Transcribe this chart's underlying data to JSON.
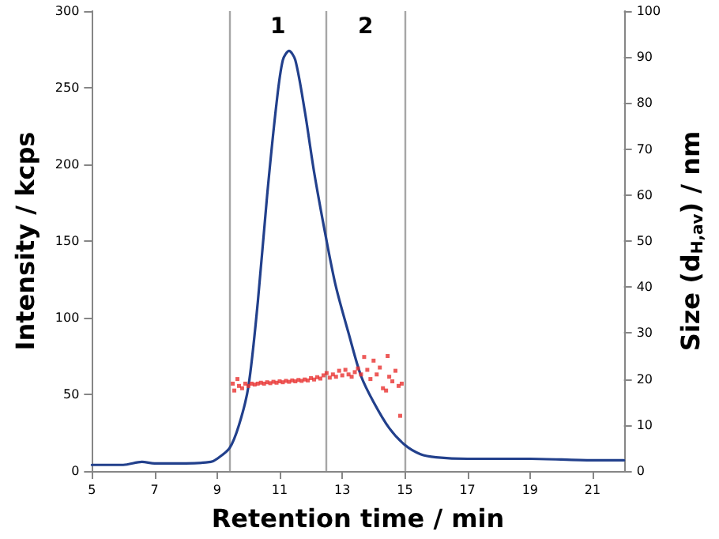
{
  "chart_data": {
    "type": "line",
    "xlabel": "Retention time / min",
    "ylabel": "Intensity / kcps",
    "y2label": "Size (d$_{H,av}$) / nm",
    "xlim": [
      5,
      22
    ],
    "xticks": [
      5,
      7,
      9,
      11,
      13,
      15,
      17,
      19,
      21
    ],
    "ylim": [
      0,
      300
    ],
    "yticks": [
      0,
      50,
      100,
      150,
      200,
      250,
      300
    ],
    "y2lim": [
      0,
      100
    ],
    "y2ticks": [
      0,
      10,
      20,
      30,
      40,
      50,
      60,
      70,
      80,
      90,
      100
    ],
    "grid": false,
    "series": [
      {
        "color": "#22408c",
        "marker": "none",
        "x": [
          5,
          6,
          6.6,
          7,
          8,
          8.8,
          9,
          9.4,
          9.7,
          10,
          10.3,
          10.6,
          10.9,
          11.1,
          11.3,
          11.5,
          11.8,
          12.1,
          12.5,
          12.8,
          13.2,
          13.6,
          14,
          14.5,
          15,
          15.5,
          16,
          17,
          19,
          21,
          22
        ],
        "values": [
          4,
          4,
          6,
          5,
          5,
          6,
          8,
          15,
          30,
          55,
          110,
          180,
          240,
          268,
          274,
          268,
          235,
          195,
          150,
          120,
          90,
          62,
          45,
          28,
          17,
          11,
          9,
          8,
          8,
          7,
          7
        ]
      },
      {
        "type": "scatter",
        "axis": "y2",
        "color": "#e8312f",
        "marker": "square",
        "x": [
          9.5,
          9.55,
          9.65,
          9.7,
          9.8,
          9.9,
          10.0,
          10.1,
          10.2,
          10.3,
          10.4,
          10.5,
          10.6,
          10.7,
          10.8,
          10.9,
          11.0,
          11.1,
          11.2,
          11.3,
          11.4,
          11.5,
          11.6,
          11.7,
          11.8,
          11.9,
          12.0,
          12.1,
          12.2,
          12.3,
          12.4,
          12.5,
          12.6,
          12.7,
          12.8,
          12.9,
          13.0,
          13.1,
          13.2,
          13.3,
          13.4,
          13.5,
          13.6,
          13.7,
          13.8,
          13.9,
          14.0,
          14.1,
          14.2,
          14.3,
          14.4,
          14.45,
          14.5,
          14.6,
          14.7,
          14.8,
          14.85,
          14.9
        ],
        "values": [
          19,
          17.5,
          20,
          18.5,
          18,
          19,
          18.5,
          19,
          18.8,
          19,
          19.2,
          19,
          19.3,
          19.1,
          19.4,
          19.2,
          19.5,
          19.3,
          19.6,
          19.4,
          19.7,
          19.5,
          19.8,
          19.6,
          19.9,
          19.7,
          20.2,
          19.9,
          20.4,
          20.1,
          20.8,
          21.3,
          20.3,
          21,
          20.5,
          21.8,
          20.8,
          22,
          21,
          20.5,
          21.5,
          22.3,
          21,
          24.8,
          22,
          20,
          24,
          21,
          22.5,
          18,
          17.5,
          25,
          20.5,
          19.5,
          21.8,
          18.5,
          12,
          19
        ]
      }
    ],
    "ref_lines": [
      {
        "axis": "x",
        "value": 9.4,
        "color": "#a6a6a6"
      },
      {
        "axis": "x",
        "value": 12.5,
        "color": "#a6a6a6"
      },
      {
        "axis": "x",
        "value": 15,
        "color": "#a6a6a6"
      }
    ],
    "annotations": [
      "1",
      "2"
    ]
  }
}
